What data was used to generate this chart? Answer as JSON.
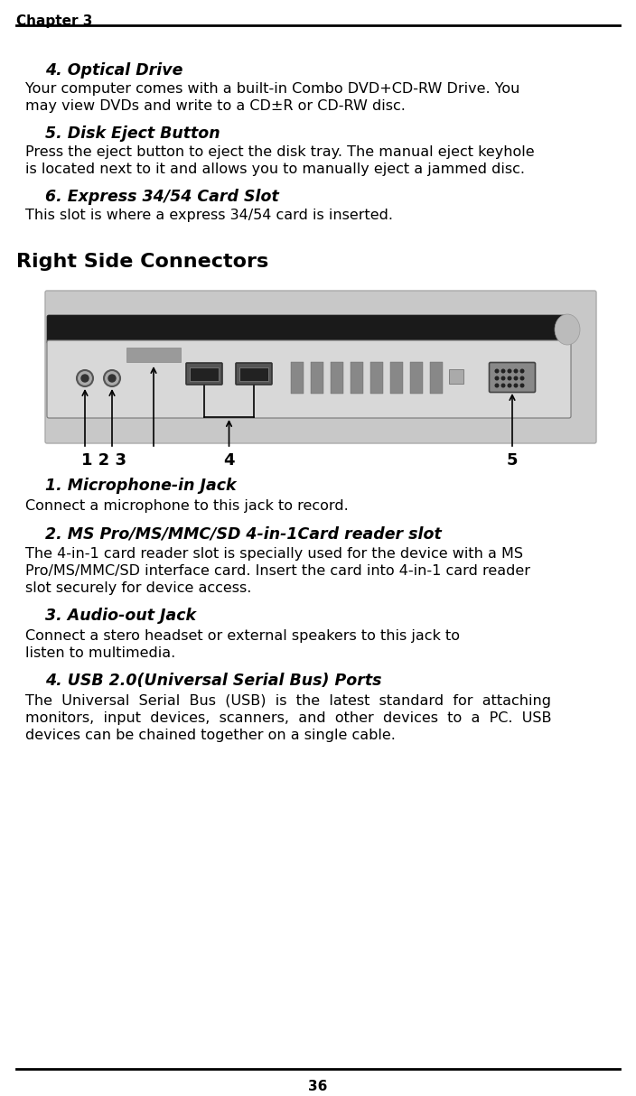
{
  "page_title": "Chapter 3",
  "page_number": "36",
  "bg_color": "#ffffff",
  "items_top": [
    {
      "heading": "4. Optical Drive",
      "body_lines": [
        "Your computer comes with a built-in Combo DVD+CD-RW Drive. You",
        "may view DVDs and write to a CD±R or CD-RW disc."
      ]
    },
    {
      "heading": "5. Disk Eject Button",
      "body_lines": [
        "Press the eject button to eject the disk tray. The manual eject keyhole",
        "is located next to it and allows you to manually eject a jammed disc."
      ]
    },
    {
      "heading": "6. Express 34/54 Card Slot",
      "body_lines": [
        "This slot is where a express 34/54 card is inserted."
      ]
    }
  ],
  "right_side_title": "Right Side Connectors",
  "items_bottom": [
    {
      "heading": "1. Microphone-in Jack",
      "body_lines": [
        "Connect a microphone to this jack to record."
      ]
    },
    {
      "heading": "2. MS Pro/MS/MMC/SD 4-in-1Card reader slot",
      "body_lines": [
        "The 4-in-1 card reader slot is specially used for the device with a MS",
        "Pro/MS/MMC/SD interface card. Insert the card into 4-in-1 card reader",
        "slot securely for device access."
      ]
    },
    {
      "heading": "3. Audio-out Jack",
      "body_lines": [
        "Connect a stero headset or external speakers to this jack to",
        "listen to multimedia."
      ]
    },
    {
      "heading": "4. USB 2.0(Universal Serial Bus) Ports",
      "body_lines": [
        "The  Universal  Serial  Bus  (USB)  is  the  latest  standard  for  attaching",
        "monitors,  input  devices,  scanners,  and  other  devices  to  a  PC.  USB",
        "devices can be chained together on a single cable."
      ]
    }
  ]
}
